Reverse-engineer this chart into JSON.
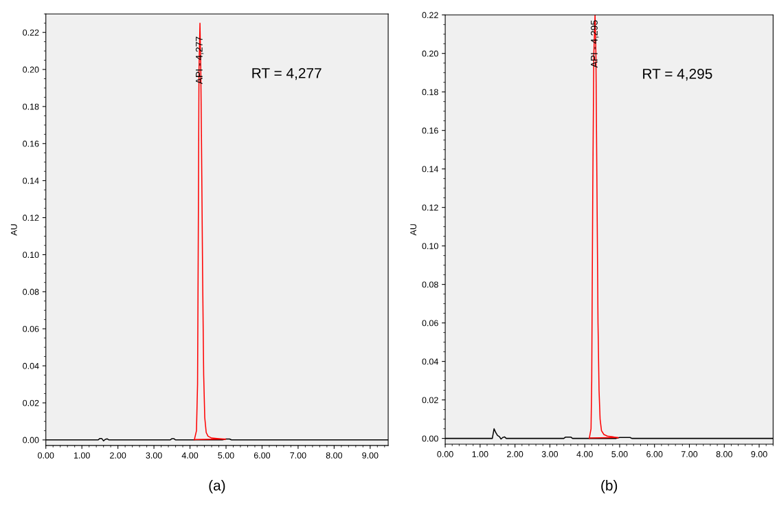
{
  "chart_data": [
    {
      "type": "line",
      "ylabel": "AU",
      "xlim": [
        0,
        9.5
      ],
      "ylim": [
        -0.003,
        0.23
      ],
      "xticks": [
        {
          "value": 0,
          "label": "0.00"
        },
        {
          "value": 1,
          "label": "1.00"
        },
        {
          "value": 2,
          "label": "2.00"
        },
        {
          "value": 3,
          "label": "3.00"
        },
        {
          "value": 4,
          "label": "4.00"
        },
        {
          "value": 5,
          "label": "5.00"
        },
        {
          "value": 6,
          "label": "6.00"
        },
        {
          "value": 7,
          "label": "7.00"
        },
        {
          "value": 8,
          "label": "8.00"
        },
        {
          "value": 9,
          "label": "9.00"
        }
      ],
      "yticks": [
        {
          "value": 0,
          "label": "0.00"
        },
        {
          "value": 0.02,
          "label": "0.02"
        },
        {
          "value": 0.04,
          "label": "0.04"
        },
        {
          "value": 0.06,
          "label": "0.06"
        },
        {
          "value": 0.08,
          "label": "0.08"
        },
        {
          "value": 0.1,
          "label": "0.10"
        },
        {
          "value": 0.12,
          "label": "0.12"
        },
        {
          "value": 0.14,
          "label": "0.14"
        },
        {
          "value": 0.16,
          "label": "0.16"
        },
        {
          "value": 0.18,
          "label": "0.18"
        },
        {
          "value": 0.2,
          "label": "0.20"
        },
        {
          "value": 0.22,
          "label": "0.22"
        }
      ],
      "grid": false,
      "legend": false,
      "marker": "none",
      "line_style": "solid",
      "series": [
        {
          "color": "#000000",
          "x": [
            0,
            1.45,
            1.5,
            1.55,
            1.6,
            1.65,
            1.7,
            1.75,
            3.45,
            3.5,
            3.55,
            3.6,
            4.9,
            5.0,
            5.1,
            5.15,
            9.5
          ],
          "values": [
            0,
            0,
            0.0008,
            0.0008,
            -0.0005,
            0.0003,
            0.0006,
            0,
            0,
            0.0007,
            0.0007,
            0,
            0,
            0.0005,
            0.0005,
            0,
            0
          ]
        },
        {
          "color": "#ff0000",
          "x": [
            4.12,
            4.18,
            4.21,
            4.23,
            4.25,
            4.277,
            4.3,
            4.32,
            4.35,
            4.38,
            4.41,
            4.45,
            4.5,
            4.6,
            4.8,
            4.98
          ],
          "values": [
            0,
            0.005,
            0.03,
            0.11,
            0.2,
            0.225,
            0.2,
            0.16,
            0.09,
            0.035,
            0.012,
            0.004,
            0.002,
            0.001,
            0.0007,
            0.0003
          ]
        },
        {
          "color": "#ff0000",
          "x": [
            4.15,
            4.98
          ],
          "values": [
            0.0002,
            0.0005
          ]
        }
      ],
      "annotations": [
        {
          "text": "API - 4,277",
          "x": 4.277,
          "y": 0.205
        },
        "RT = 4,277",
        "(a)"
      ]
    },
    {
      "type": "line",
      "ylabel": "AU",
      "xlim": [
        0,
        9.4
      ],
      "ylim": [
        -0.003,
        0.22
      ],
      "xticks": [
        {
          "value": 0,
          "label": "0.00"
        },
        {
          "value": 1,
          "label": "1.00"
        },
        {
          "value": 2,
          "label": "2.00"
        },
        {
          "value": 3,
          "label": "3.00"
        },
        {
          "value": 4,
          "label": "4.00"
        },
        {
          "value": 5,
          "label": "5.00"
        },
        {
          "value": 6,
          "label": "6.00"
        },
        {
          "value": 7,
          "label": "7.00"
        },
        {
          "value": 8,
          "label": "8.00"
        },
        {
          "value": 9,
          "label": "9.00"
        }
      ],
      "yticks": [
        {
          "value": 0,
          "label": "0.00"
        },
        {
          "value": 0.02,
          "label": "0.02"
        },
        {
          "value": 0.04,
          "label": "0.04"
        },
        {
          "value": 0.06,
          "label": "0.06"
        },
        {
          "value": 0.08,
          "label": "0.08"
        },
        {
          "value": 0.1,
          "label": "0.10"
        },
        {
          "value": 0.12,
          "label": "0.12"
        },
        {
          "value": 0.14,
          "label": "0.14"
        },
        {
          "value": 0.16,
          "label": "0.16"
        },
        {
          "value": 0.18,
          "label": "0.18"
        },
        {
          "value": 0.2,
          "label": "0.20"
        },
        {
          "value": 0.22,
          "label": "0.22"
        }
      ],
      "grid": false,
      "legend": false,
      "marker": "none",
      "line_style": "solid",
      "series": [
        {
          "color": "#000000",
          "x": [
            0,
            1.35,
            1.4,
            1.45,
            1.5,
            1.55,
            1.6,
            1.65,
            1.7,
            1.75,
            3.4,
            3.45,
            3.6,
            3.65,
            4.9,
            5.0,
            5.3,
            5.35,
            9.4
          ],
          "values": [
            0,
            0,
            0.005,
            0.003,
            0.0015,
            0.001,
            -0.0003,
            0.0005,
            0.0008,
            0,
            0,
            0.0007,
            0.0007,
            0,
            0,
            0.0005,
            0.0005,
            0,
            0
          ]
        },
        {
          "color": "#ff0000",
          "x": [
            4.13,
            4.18,
            4.2,
            4.23,
            4.26,
            4.295,
            4.32,
            4.35,
            4.38,
            4.41,
            4.44,
            4.48,
            4.55,
            4.65,
            4.8,
            4.95
          ],
          "values": [
            0,
            0.005,
            0.03,
            0.13,
            0.2,
            0.22,
            0.2,
            0.13,
            0.06,
            0.025,
            0.01,
            0.004,
            0.002,
            0.0012,
            0.0008,
            0.0003
          ]
        },
        {
          "color": "#ff0000",
          "x": [
            4.15,
            4.95
          ],
          "values": [
            0.0002,
            0.0005
          ]
        }
      ],
      "annotations": [
        {
          "text": "API - 4,295",
          "x": 4.295,
          "y": 0.205
        },
        "RT = 4,295",
        "(b)"
      ]
    }
  ]
}
